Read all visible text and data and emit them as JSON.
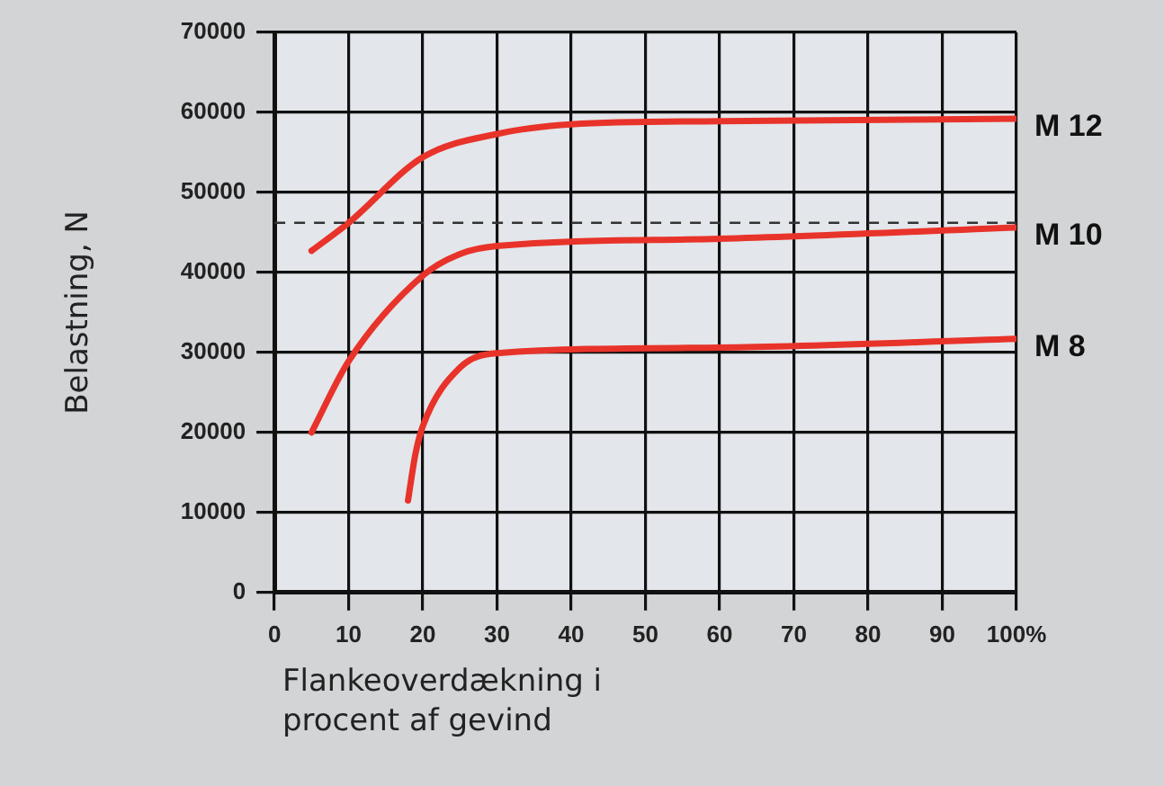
{
  "chart_data": {
    "type": "line",
    "xlabel": "Flankeoverdækning i procent af gevind",
    "ylabel": "Belastning, N",
    "xlim": [
      0,
      100
    ],
    "xticks": [
      0,
      10,
      20,
      30,
      40,
      50,
      60,
      70,
      80,
      90,
      {
        "value": 100,
        "label": "100%"
      }
    ],
    "ylim": [
      0,
      70000
    ],
    "yticks": [
      0,
      10000,
      20000,
      30000,
      40000,
      50000,
      60000,
      70000
    ],
    "grid": true,
    "legend": false,
    "marker": "none",
    "line_style": "solid",
    "series": [
      {
        "name": "M 12",
        "color": "#e8332a",
        "x": [
          5,
          10,
          20,
          30,
          40,
          60,
          100
        ],
        "values": [
          42700,
          46200,
          54400,
          57300,
          58500,
          58900,
          59200
        ]
      },
      {
        "name": "M 10",
        "color": "#e8332a",
        "x": [
          5,
          10,
          20,
          25,
          30,
          60,
          100
        ],
        "values": [
          20000,
          28900,
          39600,
          42300,
          43300,
          44200,
          45600
        ]
      },
      {
        "name": "M 8",
        "color": "#e8332a",
        "x": [
          18,
          19,
          20,
          25,
          30,
          60,
          100
        ],
        "values": [
          11500,
          17300,
          20800,
          28100,
          29900,
          30600,
          31700
        ]
      }
    ],
    "ref_lines": [
      {
        "axis": "y",
        "value": 46200,
        "color": "#333333",
        "line_style": "dashed"
      }
    ]
  }
}
